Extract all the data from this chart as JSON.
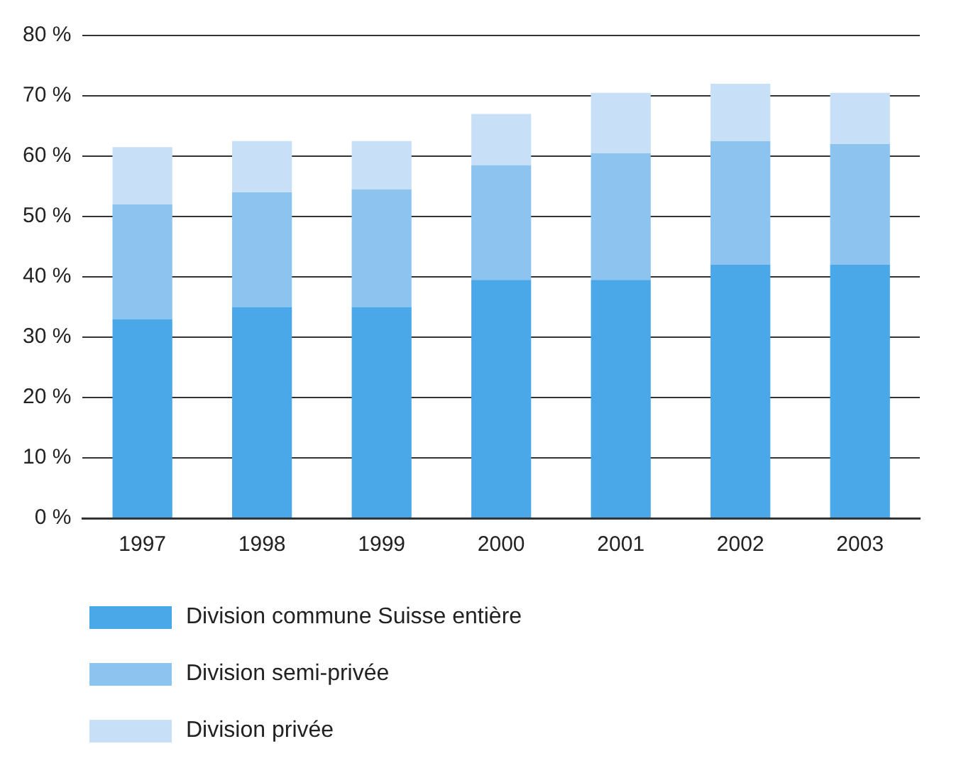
{
  "chart_data": {
    "type": "bar",
    "stacked": true,
    "categories": [
      "1997",
      "1998",
      "1999",
      "2000",
      "2001",
      "2002",
      "2003"
    ],
    "series": [
      {
        "name": "Division commune Suisse entière",
        "color": "#4aa8e8",
        "values": [
          33,
          35,
          35,
          39.5,
          39.5,
          42,
          42
        ]
      },
      {
        "name": "Division semi-privée",
        "color": "#8cc3ef",
        "values": [
          19,
          19,
          19.5,
          19,
          21,
          20.5,
          20
        ]
      },
      {
        "name": "Division privée",
        "color": "#c8e0f7",
        "values": [
          9.5,
          8.5,
          8,
          8.5,
          10,
          9.5,
          8.5
        ]
      }
    ],
    "ylim": [
      0,
      80
    ],
    "yticks": [
      {
        "value": 0,
        "label": "0 %"
      },
      {
        "value": 10,
        "label": "10 %"
      },
      {
        "value": 20,
        "label": "20 %"
      },
      {
        "value": 30,
        "label": "30 %"
      },
      {
        "value": 40,
        "label": "40 %"
      },
      {
        "value": 50,
        "label": "50 %"
      },
      {
        "value": 60,
        "label": "60 %"
      },
      {
        "value": 70,
        "label": "70 %"
      },
      {
        "value": 80,
        "label": "80 %"
      }
    ],
    "grid": "y",
    "legend": "bottom"
  }
}
